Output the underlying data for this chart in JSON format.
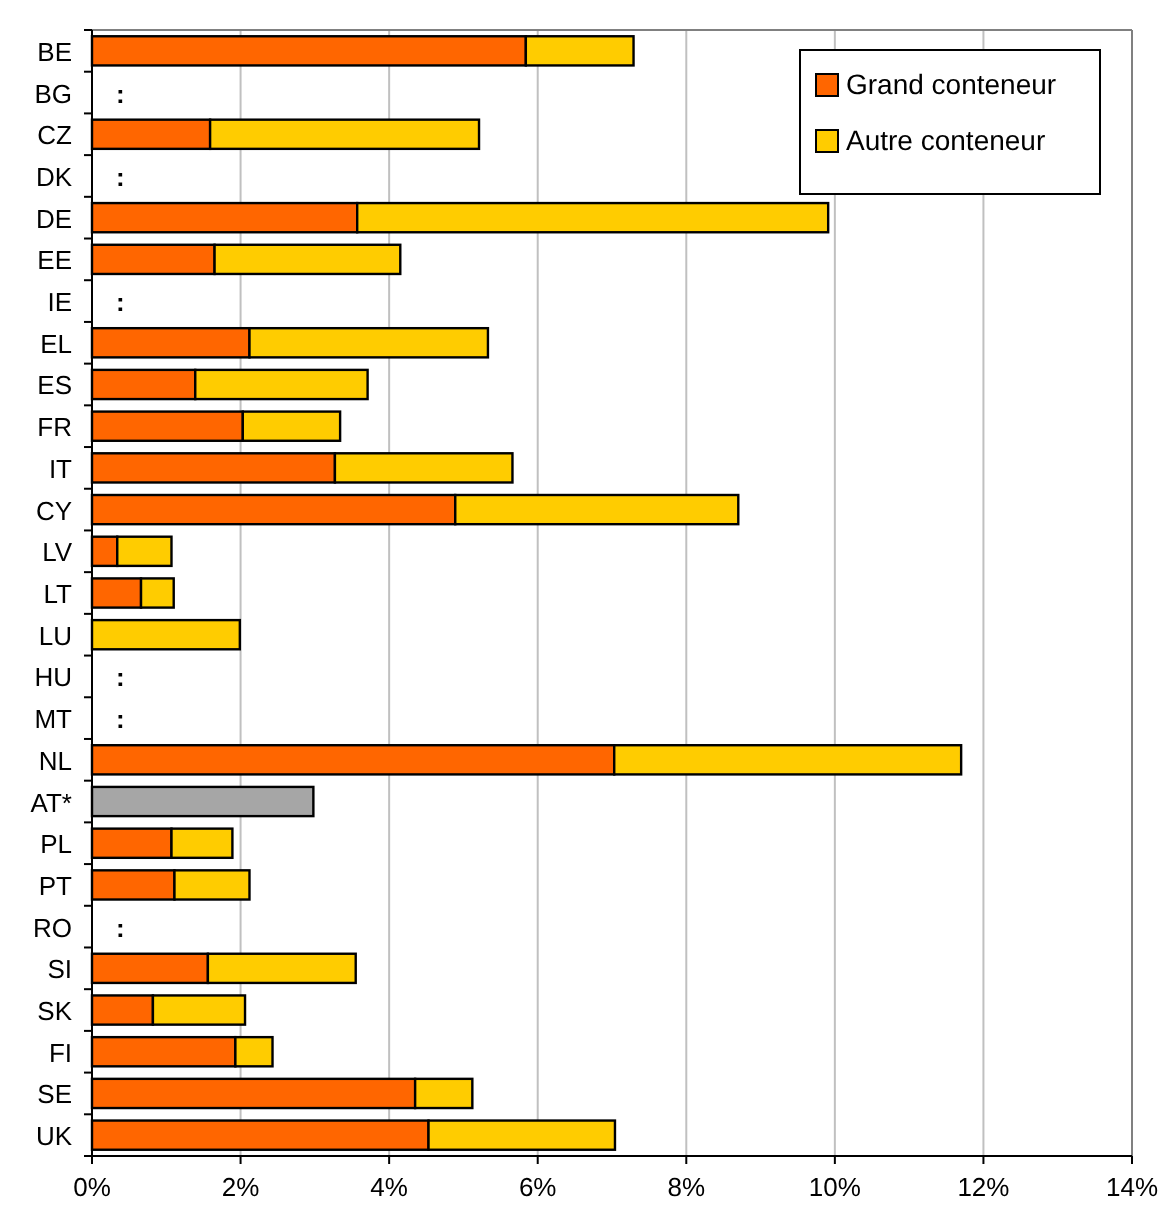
{
  "chart_data": {
    "type": "bar",
    "orientation": "horizontal",
    "stacked": true,
    "categories": [
      "BE",
      "BG",
      "CZ",
      "DK",
      "DE",
      "EE",
      "IE",
      "EL",
      "ES",
      "FR",
      "IT",
      "CY",
      "LV",
      "LT",
      "LU",
      "HU",
      "MT",
      "NL",
      "AT*",
      "PL",
      "PT",
      "RO",
      "SI",
      "SK",
      "FI",
      "SE",
      "UK"
    ],
    "series": [
      {
        "name": "Grand conteneur",
        "color": "#ff6600",
        "values": [
          5.84,
          null,
          1.59,
          null,
          3.57,
          1.65,
          null,
          2.12,
          1.39,
          2.03,
          3.27,
          4.89,
          0.34,
          0.66,
          0,
          null,
          null,
          7.03,
          null,
          1.07,
          1.11,
          null,
          1.56,
          0.82,
          1.93,
          4.35,
          4.53
        ]
      },
      {
        "name": "Autre conteneur",
        "color": "#ffcc00",
        "values": [
          1.45,
          null,
          3.62,
          null,
          6.34,
          2.5,
          null,
          3.21,
          2.32,
          1.31,
          2.39,
          3.81,
          0.73,
          0.44,
          1.99,
          null,
          null,
          4.67,
          null,
          0.82,
          1.01,
          null,
          1.99,
          1.24,
          0.5,
          0.77,
          2.51
        ]
      },
      {
        "color": "#a6a6a6",
        "values": [
          null,
          null,
          null,
          null,
          null,
          null,
          null,
          null,
          null,
          null,
          null,
          null,
          null,
          null,
          null,
          null,
          null,
          null,
          2.98,
          null,
          null,
          null,
          null,
          null,
          null,
          null,
          null
        ]
      }
    ],
    "xlim": [
      0,
      14
    ],
    "xticks": [
      {
        "value": 0,
        "label": "0%"
      },
      {
        "value": 2,
        "label": "2%"
      },
      {
        "value": 4,
        "label": "4%"
      },
      {
        "value": 6,
        "label": "6%"
      },
      {
        "value": 8,
        "label": "8%"
      },
      {
        "value": 10,
        "label": "10%"
      },
      {
        "value": 12,
        "label": "12%"
      },
      {
        "value": 14,
        "label": "14%"
      }
    ],
    "grid": "x",
    "legend": "top right",
    "annotations": [
      ":",
      ":",
      ":",
      ":",
      ":",
      ":"
    ]
  }
}
